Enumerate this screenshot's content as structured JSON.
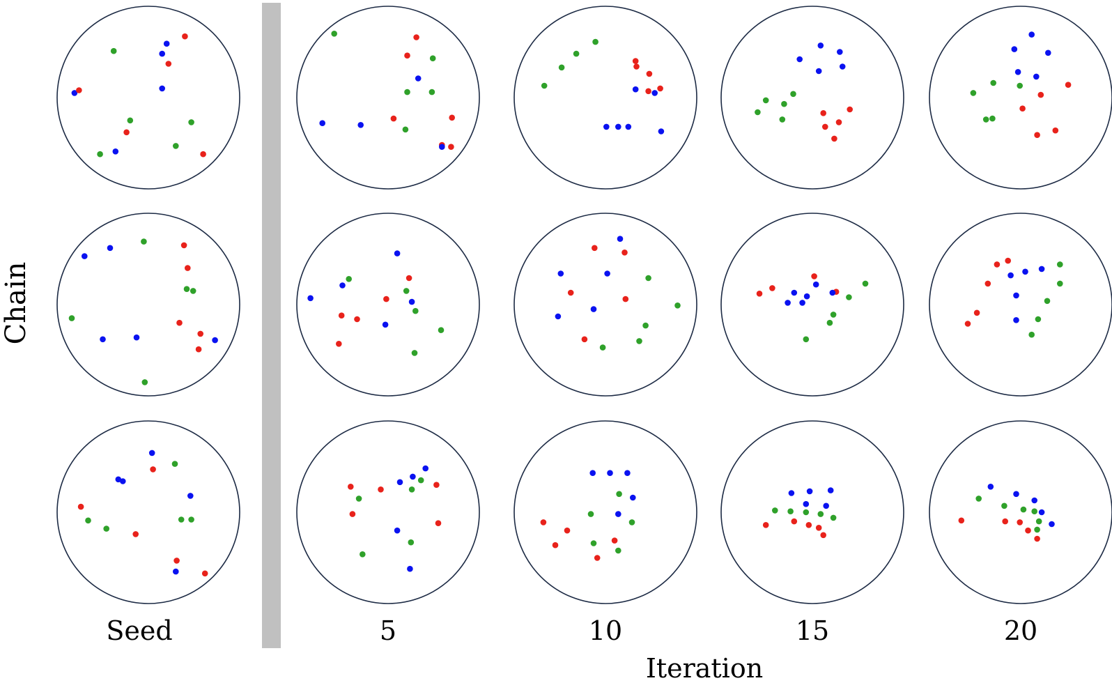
{
  "labels": {
    "y_axis": "Chain",
    "x_axis": "Iteration",
    "columns": [
      "Seed",
      "5",
      "10",
      "15",
      "20"
    ]
  },
  "colors": {
    "red": "#e8221b",
    "green": "#2fa12a",
    "blue": "#0a12f0",
    "circle": "#1c2a44",
    "divider": "#c0c0c0"
  },
  "panels": [
    [
      {
        "points": [
          [
            "r",
            0.4,
            -0.67
          ],
          [
            "b",
            0.2,
            -0.59
          ],
          [
            "b",
            0.15,
            -0.48
          ],
          [
            "g",
            -0.38,
            -0.51
          ],
          [
            "r",
            0.22,
            -0.37
          ],
          [
            "b",
            -0.81,
            -0.05
          ],
          [
            "r",
            -0.76,
            -0.08
          ],
          [
            "b",
            0.15,
            -0.1
          ],
          [
            "g",
            -0.2,
            0.25
          ],
          [
            "r",
            -0.24,
            0.38
          ],
          [
            "g",
            0.47,
            0.27
          ],
          [
            "g",
            0.3,
            0.53
          ],
          [
            "r",
            0.6,
            0.62
          ],
          [
            "b",
            -0.36,
            0.59
          ],
          [
            "g",
            -0.53,
            0.62
          ]
        ]
      },
      {
        "points": [
          [
            "r",
            0.31,
            -0.66
          ],
          [
            "g",
            -0.59,
            -0.7
          ],
          [
            "r",
            0.21,
            -0.46
          ],
          [
            "g",
            0.49,
            -0.43
          ],
          [
            "b",
            0.33,
            -0.21
          ],
          [
            "g",
            0.48,
            -0.06
          ],
          [
            "g",
            0.21,
            -0.06
          ],
          [
            "r",
            0.7,
            0.22
          ],
          [
            "b",
            -0.72,
            0.28
          ],
          [
            "b",
            -0.3,
            0.3
          ],
          [
            "r",
            0.06,
            0.23
          ],
          [
            "g",
            0.19,
            0.35
          ],
          [
            "r",
            0.59,
            0.52
          ],
          [
            "b",
            0.59,
            0.54
          ],
          [
            "r",
            0.69,
            0.54
          ]
        ]
      },
      {
        "points": [
          [
            "r",
            0.33,
            -0.4
          ],
          [
            "r",
            0.34,
            -0.34
          ],
          [
            "r",
            0.48,
            -0.26
          ],
          [
            "g",
            -0.11,
            -0.61
          ],
          [
            "g",
            -0.32,
            -0.48
          ],
          [
            "g",
            -0.48,
            -0.33
          ],
          [
            "g",
            -0.67,
            -0.13
          ],
          [
            "r",
            0.6,
            -0.1
          ],
          [
            "r",
            0.47,
            -0.07
          ],
          [
            "b",
            0.33,
            -0.09
          ],
          [
            "b",
            0.54,
            -0.05
          ],
          [
            "b",
            0.61,
            0.37
          ],
          [
            "b",
            0.01,
            0.32
          ],
          [
            "b",
            0.14,
            0.32
          ],
          [
            "b",
            0.25,
            0.32
          ]
        ]
      },
      {
        "points": [
          [
            "b",
            0.09,
            -0.57
          ],
          [
            "b",
            0.3,
            -0.5
          ],
          [
            "b",
            -0.14,
            -0.42
          ],
          [
            "b",
            0.33,
            -0.34
          ],
          [
            "b",
            0.07,
            -0.29
          ],
          [
            "g",
            -0.21,
            -0.04
          ],
          [
            "g",
            -0.31,
            0.07
          ],
          [
            "g",
            -0.51,
            0.03
          ],
          [
            "g",
            -0.6,
            0.16
          ],
          [
            "g",
            -0.33,
            0.24
          ],
          [
            "r",
            0.12,
            0.17
          ],
          [
            "r",
            0.41,
            0.13
          ],
          [
            "r",
            0.29,
            0.27
          ],
          [
            "r",
            0.14,
            0.32
          ],
          [
            "r",
            0.24,
            0.45
          ]
        ]
      },
      {
        "points": [
          [
            "b",
            0.12,
            -0.69
          ],
          [
            "b",
            -0.07,
            -0.53
          ],
          [
            "b",
            0.3,
            -0.49
          ],
          [
            "b",
            -0.03,
            -0.28
          ],
          [
            "b",
            0.17,
            -0.23
          ],
          [
            "g",
            -0.3,
            -0.16
          ],
          [
            "g",
            -0.01,
            -0.13
          ],
          [
            "g",
            -0.52,
            -0.05
          ],
          [
            "g",
            -0.38,
            0.24
          ],
          [
            "g",
            -0.31,
            0.23
          ],
          [
            "r",
            0.52,
            -0.14
          ],
          [
            "r",
            0.22,
            -0.03
          ],
          [
            "r",
            0.02,
            0.12
          ],
          [
            "r",
            0.38,
            0.36
          ],
          [
            "r",
            0.18,
            0.41
          ]
        ]
      }
    ],
    [
      {
        "points": [
          [
            "g",
            -0.05,
            -0.69
          ],
          [
            "r",
            0.39,
            -0.65
          ],
          [
            "b",
            -0.42,
            -0.62
          ],
          [
            "b",
            -0.7,
            -0.53
          ],
          [
            "r",
            0.43,
            -0.4
          ],
          [
            "g",
            0.42,
            -0.17
          ],
          [
            "g",
            0.49,
            -0.15
          ],
          [
            "r",
            0.34,
            0.2
          ],
          [
            "g",
            -0.84,
            0.15
          ],
          [
            "r",
            0.57,
            0.32
          ],
          [
            "b",
            0.73,
            0.39
          ],
          [
            "b",
            -0.5,
            0.38
          ],
          [
            "b",
            -0.13,
            0.36
          ],
          [
            "r",
            0.55,
            0.49
          ],
          [
            "g",
            -0.04,
            0.85
          ]
        ]
      },
      {
        "points": [
          [
            "b",
            0.1,
            -0.56
          ],
          [
            "r",
            0.23,
            -0.29
          ],
          [
            "g",
            -0.43,
            -0.28
          ],
          [
            "b",
            -0.5,
            -0.21
          ],
          [
            "g",
            0.2,
            -0.15
          ],
          [
            "b",
            -0.85,
            -0.07
          ],
          [
            "r",
            -0.02,
            -0.06
          ],
          [
            "b",
            0.26,
            -0.03
          ],
          [
            "g",
            0.3,
            0.07
          ],
          [
            "r",
            -0.51,
            0.12
          ],
          [
            "r",
            -0.34,
            0.16
          ],
          [
            "b",
            -0.03,
            0.22
          ],
          [
            "g",
            0.58,
            0.28
          ],
          [
            "r",
            -0.54,
            0.43
          ],
          [
            "g",
            0.29,
            0.53
          ]
        ]
      },
      {
        "points": [
          [
            "b",
            0.16,
            -0.72
          ],
          [
            "r",
            -0.12,
            -0.62
          ],
          [
            "r",
            0.21,
            -0.57
          ],
          [
            "b",
            -0.49,
            -0.34
          ],
          [
            "b",
            0.02,
            -0.34
          ],
          [
            "g",
            0.47,
            -0.29
          ],
          [
            "r",
            -0.38,
            -0.13
          ],
          [
            "r",
            0.22,
            -0.06
          ],
          [
            "b",
            -0.52,
            0.13
          ],
          [
            "b",
            -0.13,
            0.05
          ],
          [
            "g",
            0.44,
            0.23
          ],
          [
            "g",
            0.79,
            0.01
          ],
          [
            "r",
            -0.23,
            0.38
          ],
          [
            "g",
            0.37,
            0.4
          ],
          [
            "g",
            -0.03,
            0.47
          ]
        ]
      },
      {
        "points": [
          [
            "r",
            0.02,
            -0.31
          ],
          [
            "b",
            0.04,
            -0.22
          ],
          [
            "r",
            0.26,
            -0.14
          ],
          [
            "r",
            -0.44,
            -0.18
          ],
          [
            "g",
            0.4,
            -0.08
          ],
          [
            "b",
            0.22,
            -0.13
          ],
          [
            "b",
            -0.2,
            -0.13
          ],
          [
            "b",
            -0.06,
            -0.09
          ],
          [
            "g",
            0.23,
            0.11
          ],
          [
            "r",
            -0.58,
            -0.12
          ],
          [
            "b",
            -0.27,
            -0.02
          ],
          [
            "b",
            -0.11,
            -0.02
          ],
          [
            "g",
            0.19,
            0.2
          ],
          [
            "g",
            -0.07,
            0.38
          ],
          [
            "g",
            0.58,
            -0.23
          ]
        ]
      },
      {
        "points": [
          [
            "r",
            -0.14,
            -0.48
          ],
          [
            "r",
            -0.26,
            -0.44
          ],
          [
            "b",
            0.23,
            -0.39
          ],
          [
            "b",
            0.05,
            -0.36
          ],
          [
            "b",
            -0.11,
            -0.32
          ],
          [
            "g",
            0.43,
            -0.23
          ],
          [
            "r",
            -0.36,
            -0.23
          ],
          [
            "g",
            0.43,
            -0.44
          ],
          [
            "b",
            -0.05,
            -0.1
          ],
          [
            "g",
            0.29,
            -0.04
          ],
          [
            "r",
            -0.48,
            0.09
          ],
          [
            "b",
            -0.05,
            0.17
          ],
          [
            "g",
            0.19,
            0.16
          ],
          [
            "r",
            -0.58,
            0.21
          ],
          [
            "g",
            0.12,
            0.33
          ]
        ]
      }
    ],
    [
      {
        "points": [
          [
            "b",
            0.04,
            -0.65
          ],
          [
            "r",
            0.05,
            -0.47
          ],
          [
            "g",
            0.29,
            -0.53
          ],
          [
            "b",
            -0.28,
            -0.34
          ],
          [
            "b",
            -0.33,
            -0.36
          ],
          [
            "b",
            0.46,
            -0.18
          ],
          [
            "r",
            -0.74,
            -0.06
          ],
          [
            "g",
            0.36,
            0.08
          ],
          [
            "g",
            0.47,
            0.08
          ],
          [
            "g",
            -0.66,
            0.09
          ],
          [
            "g",
            -0.46,
            0.18
          ],
          [
            "r",
            -0.14,
            0.24
          ],
          [
            "r",
            0.31,
            0.53
          ],
          [
            "b",
            0.3,
            0.65
          ],
          [
            "r",
            0.62,
            0.67
          ]
        ]
      },
      {
        "points": [
          [
            "b",
            0.41,
            -0.48
          ],
          [
            "b",
            0.27,
            -0.39
          ],
          [
            "g",
            0.36,
            -0.35
          ],
          [
            "b",
            0.13,
            -0.33
          ],
          [
            "r",
            0.53,
            -0.3
          ],
          [
            "r",
            -0.41,
            -0.28
          ],
          [
            "g",
            0.26,
            -0.25
          ],
          [
            "r",
            -0.08,
            -0.25
          ],
          [
            "g",
            -0.32,
            -0.15
          ],
          [
            "r",
            -0.39,
            0.02
          ],
          [
            "r",
            0.55,
            0.12
          ],
          [
            "b",
            0.1,
            0.2
          ],
          [
            "g",
            0.25,
            0.33
          ],
          [
            "g",
            -0.28,
            0.46
          ],
          [
            "b",
            0.24,
            0.62
          ]
        ]
      },
      {
        "points": [
          [
            "b",
            -0.14,
            -0.43
          ],
          [
            "b",
            0.05,
            -0.43
          ],
          [
            "b",
            0.24,
            -0.43
          ],
          [
            "g",
            0.15,
            -0.2
          ],
          [
            "b",
            0.3,
            -0.16
          ],
          [
            "g",
            -0.16,
            0.02
          ],
          [
            "b",
            0.14,
            0.02
          ],
          [
            "g",
            0.29,
            0.11
          ],
          [
            "r",
            -0.68,
            0.11
          ],
          [
            "r",
            -0.42,
            0.2
          ],
          [
            "r",
            0.1,
            0.31
          ],
          [
            "g",
            -0.13,
            0.34
          ],
          [
            "r",
            -0.55,
            0.36
          ],
          [
            "g",
            0.14,
            0.42
          ],
          [
            "r",
            -0.09,
            0.5
          ]
        ]
      },
      {
        "points": [
          [
            "b",
            -0.23,
            -0.21
          ],
          [
            "b",
            -0.03,
            -0.23
          ],
          [
            "b",
            0.2,
            -0.24
          ],
          [
            "b",
            -0.07,
            -0.09
          ],
          [
            "b",
            0.15,
            -0.07
          ],
          [
            "g",
            -0.41,
            -0.02
          ],
          [
            "g",
            -0.24,
            -0.01
          ],
          [
            "g",
            -0.07,
            0.0
          ],
          [
            "g",
            0.09,
            0.02
          ],
          [
            "g",
            0.23,
            0.06
          ],
          [
            "r",
            -0.51,
            0.14
          ],
          [
            "r",
            -0.2,
            0.1
          ],
          [
            "r",
            -0.04,
            0.14
          ],
          [
            "r",
            0.07,
            0.17
          ],
          [
            "r",
            0.12,
            0.25
          ]
        ]
      },
      {
        "points": [
          [
            "b",
            -0.33,
            -0.28
          ],
          [
            "b",
            -0.05,
            -0.2
          ],
          [
            "g",
            -0.46,
            -0.15
          ],
          [
            "b",
            0.15,
            -0.13
          ],
          [
            "g",
            -0.18,
            -0.07
          ],
          [
            "g",
            0.03,
            -0.03
          ],
          [
            "g",
            0.15,
            -0.01
          ],
          [
            "b",
            0.23,
            0.0
          ],
          [
            "r",
            -0.65,
            0.09
          ],
          [
            "r",
            -0.17,
            0.1
          ],
          [
            "g",
            0.2,
            0.1
          ],
          [
            "r",
            -0.01,
            0.11
          ],
          [
            "b",
            0.34,
            0.13
          ],
          [
            "r",
            0.08,
            0.2
          ],
          [
            "g",
            0.18,
            0.19
          ],
          [
            "r",
            0.18,
            0.29
          ]
        ]
      }
    ]
  ]
}
